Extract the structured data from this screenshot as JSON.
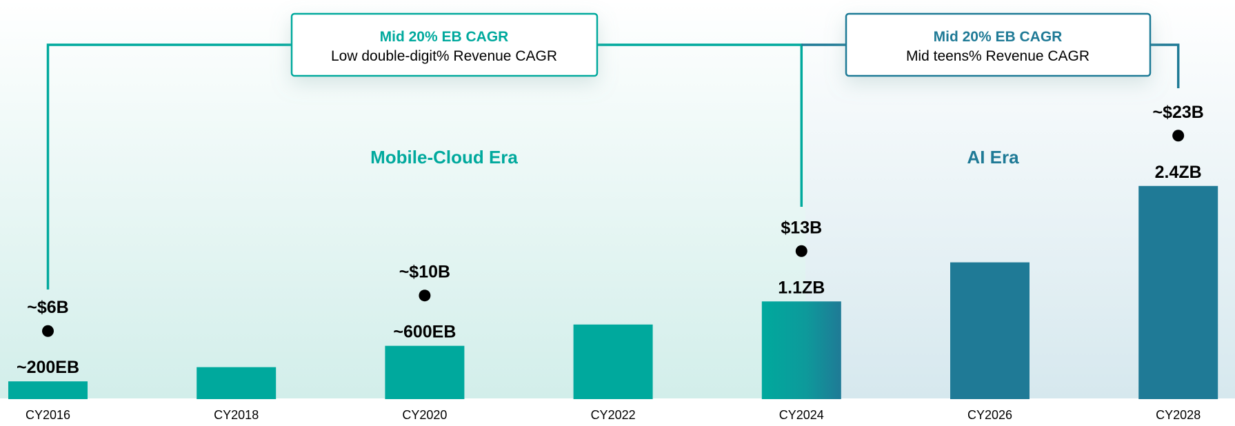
{
  "chart_data": {
    "type": "bar",
    "title": "",
    "xlabel": "",
    "ylabel": "",
    "categories": [
      "CY2016",
      "CY2018",
      "CY2020",
      "CY2022",
      "CY2024",
      "CY2026",
      "CY2028"
    ],
    "values": [
      200,
      360,
      600,
      840,
      1100,
      1540,
      2400
    ],
    "unit": "EB",
    "ylim": [
      0,
      2600
    ],
    "value_labels": [
      "~200EB",
      "",
      "~600EB",
      "",
      "1.1ZB",
      "",
      "2.4ZB"
    ],
    "revenue_labels": [
      "~$6B",
      "",
      "~$10B",
      "",
      "$13B",
      "",
      "~$23B"
    ],
    "eras": [
      {
        "name": "Mobile-Cloud Era",
        "cagr_eb": "Mid 20% EB CAGR",
        "cagr_revenue": "Low double-digit% Revenue CAGR",
        "from": "CY2016",
        "to": "CY2024",
        "color": "#00A99D"
      },
      {
        "name": "AI Era",
        "cagr_eb": "Mid 20% EB CAGR",
        "cagr_revenue": "Mid teens% Revenue CAGR",
        "from": "CY2024",
        "to": "CY2028",
        "color": "#1F7A96"
      }
    ],
    "colors": {
      "mobile_cloud": "#00A99D",
      "ai": "#1F7A96",
      "text": "#000000",
      "axis": "#d7e9e6"
    }
  }
}
